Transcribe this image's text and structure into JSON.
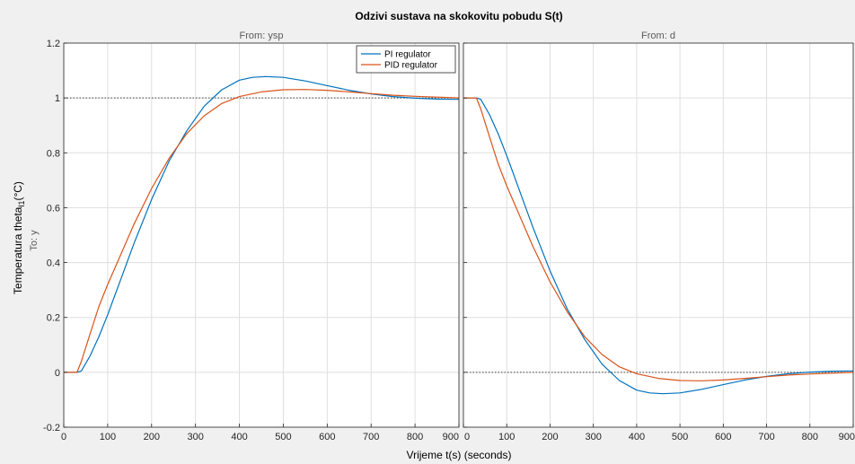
{
  "chart_data": {
    "type": "line",
    "title": "Odzivi sustava na skokovitu pobudu S(t)",
    "xlabel": "Vrijeme t(s) (seconds)",
    "ylabel_main": "Temperatura theta",
    "ylabel_sub": "l1",
    "ylabel_unit": "(°C)",
    "row_label": "To: y",
    "xlim": [
      0,
      900
    ],
    "ylim": [
      -0.2,
      1.2
    ],
    "xticks": [
      "0",
      "100",
      "200",
      "300",
      "400",
      "500",
      "600",
      "700",
      "800",
      "900"
    ],
    "yticks": [
      "-0.2",
      "0",
      "0.2",
      "0.4",
      "0.6",
      "0.8",
      "1",
      "1.2"
    ],
    "grid": true,
    "legend_position": "top-right",
    "colors": {
      "pi": "#0072bd",
      "pid": "#d95319",
      "ref": "#404040"
    },
    "panels": [
      {
        "subtitle": "From: ysp",
        "reference": 1,
        "series": [
          {
            "name": "PI regulator",
            "color": "#0072bd",
            "x": [
              0,
              30,
              40,
              60,
              80,
              100,
              130,
              160,
              200,
              240,
              280,
              320,
              360,
              400,
              430,
              460,
              500,
              550,
              600,
              650,
              700,
              750,
              800,
              850,
              900
            ],
            "y": [
              0,
              0,
              0.005,
              0.06,
              0.13,
              0.21,
              0.34,
              0.47,
              0.63,
              0.77,
              0.88,
              0.97,
              1.03,
              1.065,
              1.075,
              1.078,
              1.075,
              1.062,
              1.045,
              1.028,
              1.015,
              1.005,
              0.999,
              0.996,
              0.995
            ]
          },
          {
            "name": "PID regulator",
            "color": "#d95319",
            "x": [
              0,
              30,
              40,
              60,
              80,
              100,
              130,
              160,
              200,
              240,
              280,
              320,
              360,
              400,
              450,
              500,
              550,
              600,
              650,
              700,
              750,
              800,
              850,
              900
            ],
            "y": [
              0,
              0,
              0.04,
              0.14,
              0.24,
              0.32,
              0.43,
              0.54,
              0.67,
              0.78,
              0.87,
              0.935,
              0.98,
              1.005,
              1.022,
              1.03,
              1.031,
              1.028,
              1.022,
              1.016,
              1.01,
              1.006,
              1.003,
              1.0
            ]
          }
        ]
      },
      {
        "subtitle": "From: d",
        "reference": 0,
        "series": [
          {
            "name": "PI regulator",
            "color": "#0072bd",
            "x": [
              0,
              30,
              40,
              60,
              80,
              100,
              130,
              160,
              200,
              240,
              280,
              320,
              360,
              400,
              430,
              460,
              500,
              550,
              600,
              650,
              700,
              750,
              800,
              850,
              900
            ],
            "y": [
              1,
              1,
              0.995,
              0.94,
              0.87,
              0.79,
              0.66,
              0.53,
              0.37,
              0.23,
              0.12,
              0.03,
              -0.03,
              -0.065,
              -0.075,
              -0.078,
              -0.075,
              -0.062,
              -0.045,
              -0.028,
              -0.015,
              -0.005,
              0.001,
              0.004,
              0.005
            ]
          },
          {
            "name": "PID regulator",
            "color": "#d95319",
            "x": [
              0,
              30,
              40,
              60,
              80,
              100,
              130,
              160,
              200,
              240,
              280,
              320,
              360,
              400,
              450,
              500,
              550,
              600,
              650,
              700,
              750,
              800,
              850,
              900
            ],
            "y": [
              1,
              1,
              0.96,
              0.86,
              0.76,
              0.68,
              0.57,
              0.46,
              0.33,
              0.22,
              0.13,
              0.065,
              0.02,
              -0.005,
              -0.022,
              -0.03,
              -0.031,
              -0.028,
              -0.022,
              -0.016,
              -0.01,
              -0.006,
              -0.003,
              0.0
            ]
          }
        ]
      }
    ]
  }
}
